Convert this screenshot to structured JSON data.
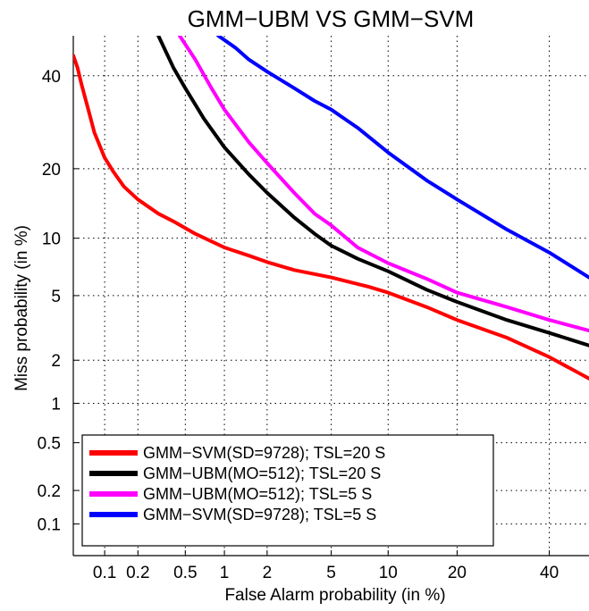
{
  "chart_data": {
    "type": "line",
    "title": "GMM−UBM  VS  GMM−SVM",
    "xlabel": "False Alarm probability (in %)",
    "ylabel": "Miss probability (in %)",
    "x_scale": "probit",
    "y_scale": "probit",
    "xlim": [
      0.05,
      50
    ],
    "ylim": [
      0.05,
      50
    ],
    "x_ticks": [
      {
        "v": 0.1,
        "label": "0.1"
      },
      {
        "v": 0.2,
        "label": "0.2"
      },
      {
        "v": 0.5,
        "label": "0.5"
      },
      {
        "v": 1,
        "label": "1"
      },
      {
        "v": 2,
        "label": "2"
      },
      {
        "v": 5,
        "label": "5"
      },
      {
        "v": 10,
        "label": "10"
      },
      {
        "v": 20,
        "label": "20"
      },
      {
        "v": 40,
        "label": "40"
      }
    ],
    "y_ticks": [
      {
        "v": 0.1,
        "label": "0.1"
      },
      {
        "v": 0.2,
        "label": "0.2"
      },
      {
        "v": 0.5,
        "label": "0.5"
      },
      {
        "v": 1,
        "label": "1"
      },
      {
        "v": 2,
        "label": "2"
      },
      {
        "v": 5,
        "label": "5"
      },
      {
        "v": 10,
        "label": "10"
      },
      {
        "v": 20,
        "label": "20"
      },
      {
        "v": 40,
        "label": "40"
      }
    ],
    "grid": true,
    "legend_position": "bottom-left",
    "series": [
      {
        "name": "GMM−SVM(SD=9728); TSL=20 S",
        "color": "#ff0000",
        "x": [
          0.05,
          0.055,
          0.06,
          0.07,
          0.08,
          0.1,
          0.12,
          0.15,
          0.2,
          0.3,
          0.4,
          0.6,
          1,
          1.5,
          2,
          3,
          5,
          8,
          10,
          15,
          20,
          30,
          40,
          50
        ],
        "y": [
          45,
          42,
          38,
          32,
          27,
          22,
          19.5,
          17,
          15,
          13,
          12,
          10.5,
          9,
          8.2,
          7.6,
          6.9,
          6.3,
          5.6,
          5.2,
          4.3,
          3.6,
          2.8,
          2.1,
          1.5
        ]
      },
      {
        "name": "GMM−UBM(MO=512); TSL=20 S",
        "color": "#000000",
        "x": [
          0.3,
          0.4,
          0.5,
          0.7,
          1,
          1.5,
          2,
          3,
          4,
          5,
          7,
          10,
          15,
          20,
          30,
          40,
          50
        ],
        "y": [
          50,
          42,
          37,
          30,
          24,
          19,
          16,
          12.5,
          10.5,
          9.2,
          7.9,
          6.8,
          5.4,
          4.6,
          3.6,
          3.0,
          2.5
        ]
      },
      {
        "name": "GMM−UBM(MO=512); TSL=5 S",
        "color": "#ff00ff",
        "x": [
          0.45,
          0.6,
          0.8,
          1,
          1.5,
          2,
          3,
          4,
          5,
          7,
          10,
          15,
          20,
          30,
          40,
          50
        ],
        "y": [
          50,
          44,
          37,
          32,
          25,
          21,
          16,
          13,
          11.5,
          9,
          7.5,
          6.2,
          5.2,
          4.3,
          3.6,
          3.1
        ]
      },
      {
        "name": "GMM−SVM(SD=9728); TSL=5 S",
        "color": "#0000ff",
        "x": [
          0.9,
          1.2,
          1.5,
          2,
          3,
          4,
          5,
          7,
          10,
          15,
          20,
          30,
          40,
          50
        ],
        "y": [
          50,
          47,
          44,
          41,
          37,
          34,
          32,
          28,
          23,
          18,
          15,
          11,
          8.5,
          6.3
        ]
      }
    ]
  }
}
